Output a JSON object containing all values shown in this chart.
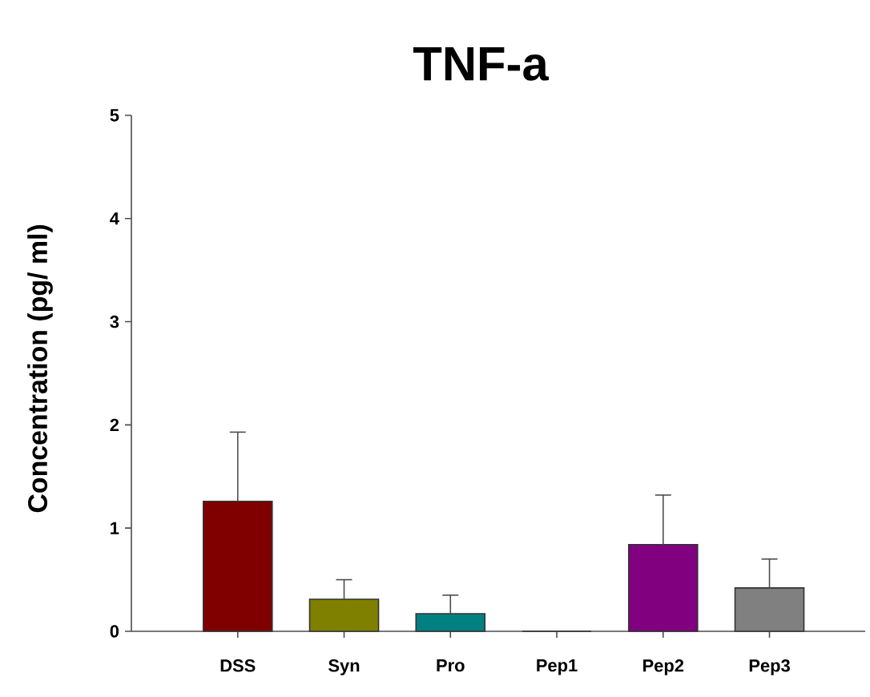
{
  "chart_data": {
    "type": "bar",
    "title": "TNF-a",
    "ylabel": "Concentration (pg/ ml)",
    "categories": [
      "DSS",
      "Syn",
      "Pro",
      "Pep1",
      "Pep2",
      "Pep3"
    ],
    "values": [
      1.26,
      0.31,
      0.17,
      0,
      0.84,
      0.42
    ],
    "colors": [
      "#800000",
      "#808000",
      "#008080",
      "#000080",
      "#800080",
      "#808080"
    ],
    "errors": [
      [
        1.26,
        1.93
      ],
      [
        0.31,
        0.5
      ],
      [
        0.17,
        0.35
      ],
      null,
      [
        0.84,
        1.32
      ],
      [
        0.42,
        0.7
      ]
    ],
    "ylim": [
      0,
      5
    ],
    "yticks": [
      0,
      1,
      2,
      3,
      4,
      5
    ],
    "grid": false
  }
}
